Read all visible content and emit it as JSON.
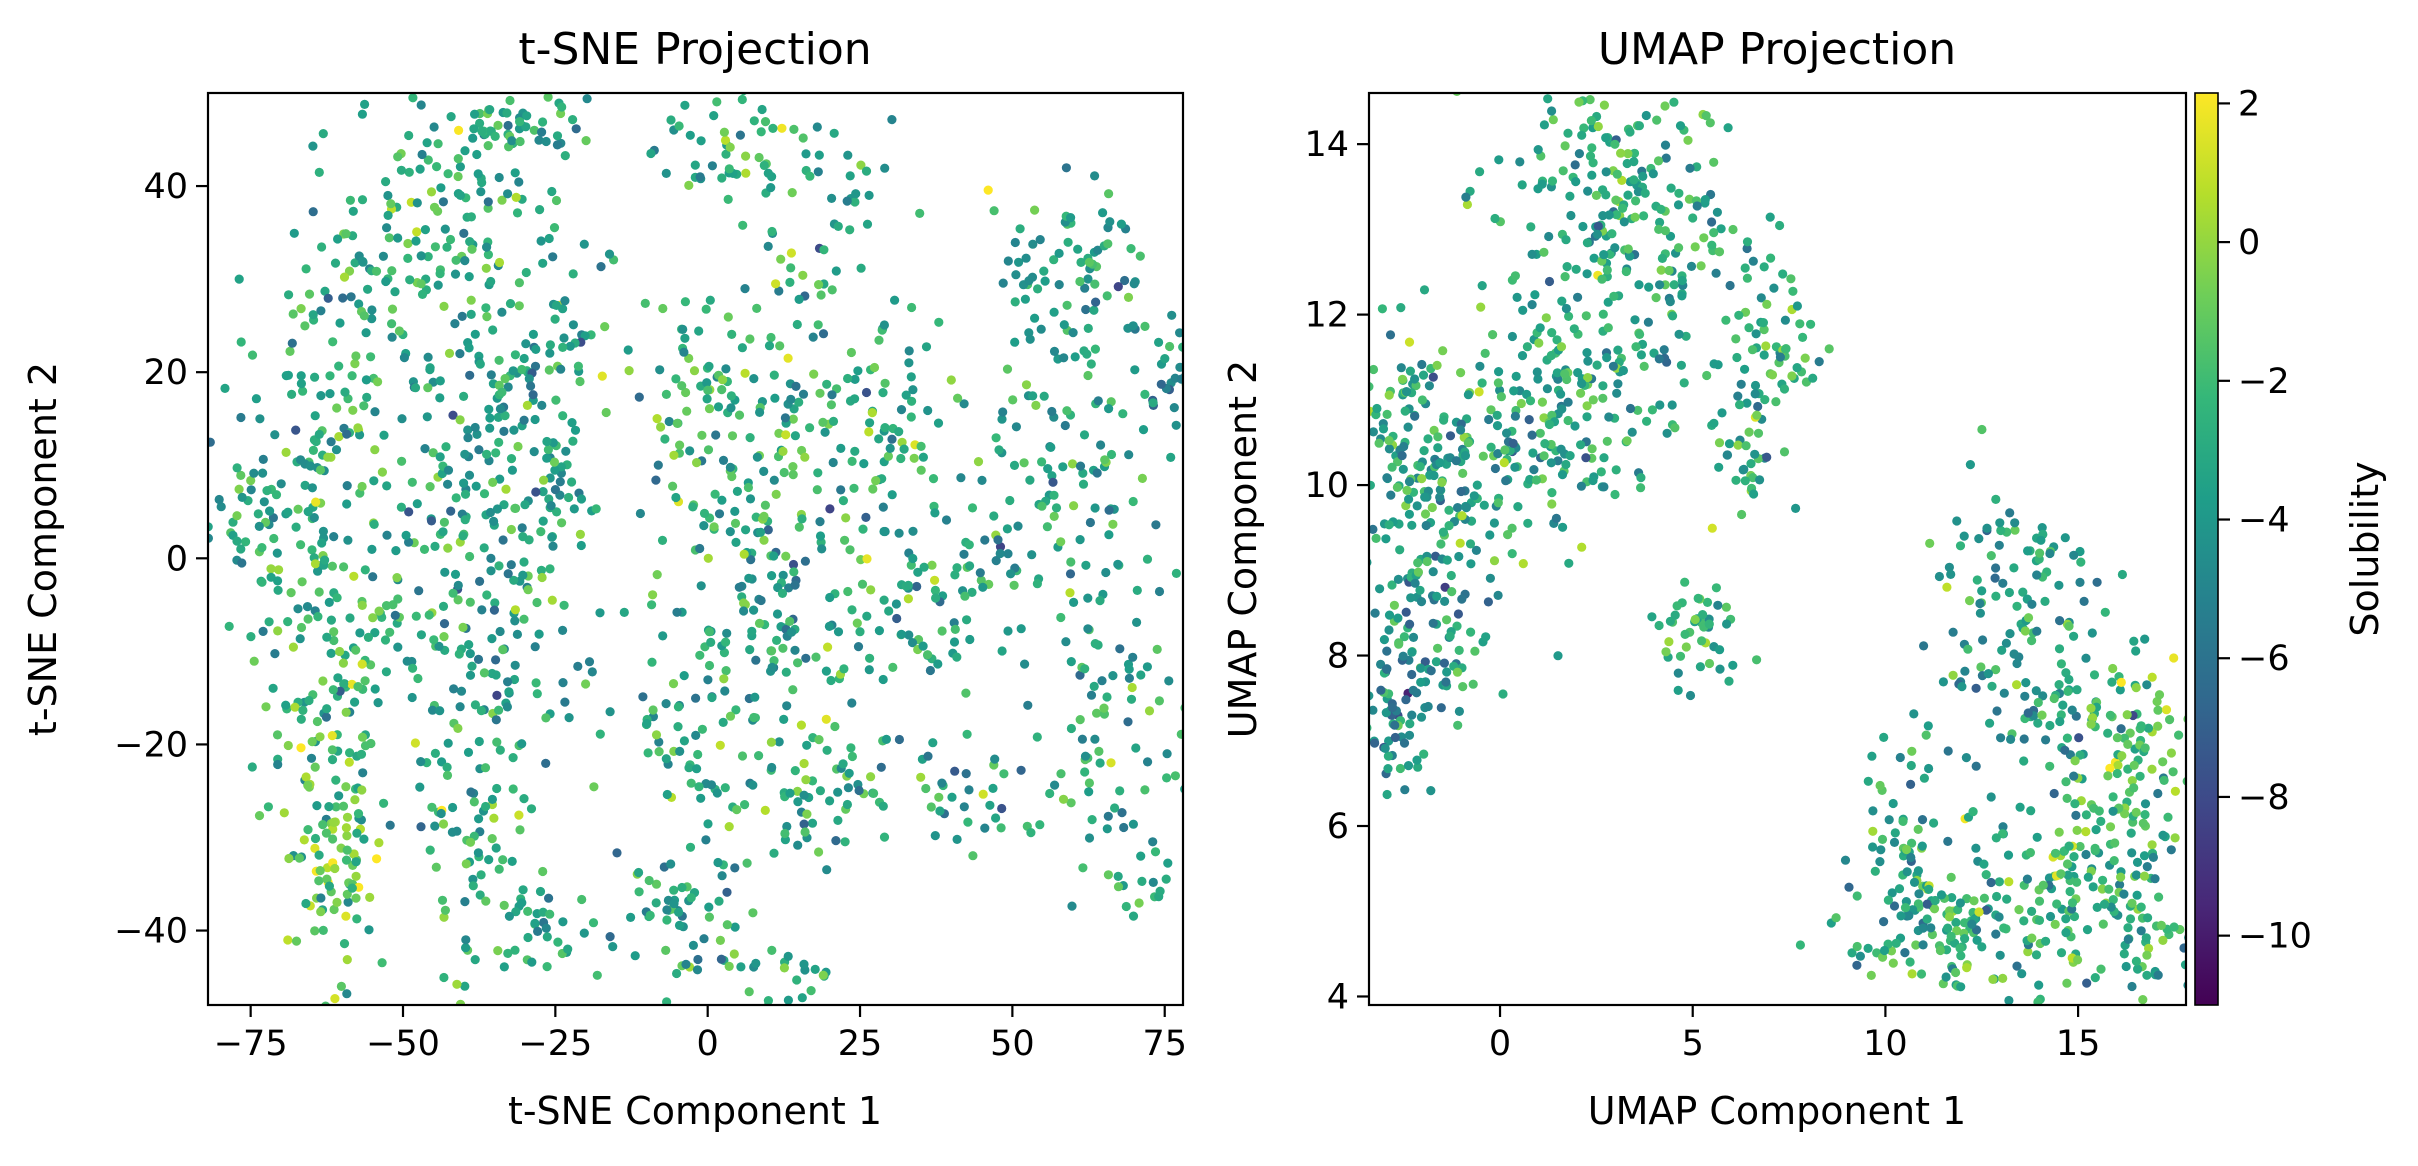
{
  "chart_data": [
    {
      "type": "scatter",
      "title": "t-SNE Projection",
      "xlabel": "t-SNE Component 1",
      "ylabel": "t-SNE Component 2",
      "xlim": [
        -82,
        78
      ],
      "ylim": [
        -48,
        50
      ],
      "xticks": [
        -75,
        -50,
        -25,
        0,
        25,
        50,
        75
      ],
      "xtick_labels": [
        "−75",
        "−50",
        "−25",
        "0",
        "25",
        "50",
        "75"
      ],
      "yticks": [
        40,
        20,
        0,
        -20,
        -40
      ],
      "ytick_labels": [
        "40",
        "20",
        "0",
        "−20",
        "−40"
      ],
      "grid": false,
      "color_by": "Solubility",
      "clusters": [
        {
          "cx": -40,
          "cy": 40,
          "sx": 9,
          "sy": 6,
          "n": 110,
          "mean": -3
        },
        {
          "cx": -30,
          "cy": 47,
          "sx": 5,
          "sy": 2,
          "n": 40,
          "mean": -3
        },
        {
          "cx": -55,
          "cy": 28,
          "sx": 8,
          "sy": 6,
          "n": 90,
          "mean": -3
        },
        {
          "cx": -30,
          "cy": 22,
          "sx": 8,
          "sy": 6,
          "n": 90,
          "mean": -3.5
        },
        {
          "cx": -65,
          "cy": 10,
          "sx": 8,
          "sy": 7,
          "n": 110,
          "mean": -3
        },
        {
          "cx": -40,
          "cy": 8,
          "sx": 8,
          "sy": 7,
          "n": 100,
          "mean": -3.5
        },
        {
          "cx": -75,
          "cy": 4,
          "sx": 4,
          "sy": 4,
          "n": 30,
          "mean": -3
        },
        {
          "cx": -25,
          "cy": 5,
          "sx": 4,
          "sy": 5,
          "n": 40,
          "mean": -3
        },
        {
          "cx": -60,
          "cy": -10,
          "sx": 8,
          "sy": 7,
          "n": 110,
          "mean": -2.5
        },
        {
          "cx": -35,
          "cy": -10,
          "sx": 9,
          "sy": 6,
          "n": 90,
          "mean": -3.5
        },
        {
          "cx": -62,
          "cy": -30,
          "sx": 5,
          "sy": 8,
          "n": 120,
          "mean": -1.5
        },
        {
          "cx": -38,
          "cy": -30,
          "sx": 5,
          "sy": 8,
          "n": 90,
          "mean": -3
        },
        {
          "cx": -25,
          "cy": -40,
          "sx": 4,
          "sy": 2,
          "n": 25,
          "mean": -3
        },
        {
          "cx": 5,
          "cy": 45,
          "sx": 8,
          "sy": 3,
          "n": 50,
          "mean": -2.5
        },
        {
          "cx": 20,
          "cy": 35,
          "sx": 7,
          "sy": 5,
          "n": 40,
          "mean": -3
        },
        {
          "cx": 0,
          "cy": 15,
          "sx": 8,
          "sy": 8,
          "n": 120,
          "mean": -2.5
        },
        {
          "cx": 25,
          "cy": 15,
          "sx": 9,
          "sy": 8,
          "n": 110,
          "mean": -3
        },
        {
          "cx": 10,
          "cy": -5,
          "sx": 9,
          "sy": 7,
          "n": 120,
          "mean": -3.5
        },
        {
          "cx": 35,
          "cy": -5,
          "sx": 9,
          "sy": 6,
          "n": 90,
          "mean": -3
        },
        {
          "cx": 60,
          "cy": 30,
          "sx": 8,
          "sy": 5,
          "n": 90,
          "mean": -3.5
        },
        {
          "cx": 60,
          "cy": 5,
          "sx": 9,
          "sy": 9,
          "n": 120,
          "mean": -3.5
        },
        {
          "cx": 65,
          "cy": -20,
          "sx": 6,
          "sy": 8,
          "n": 70,
          "mean": -3
        },
        {
          "cx": 20,
          "cy": -25,
          "sx": 6,
          "sy": 4,
          "n": 60,
          "mean": -2.5
        },
        {
          "cx": 40,
          "cy": -25,
          "sx": 5,
          "sy": 3,
          "n": 30,
          "mean": -3
        },
        {
          "cx": 0,
          "cy": -20,
          "sx": 6,
          "sy": 6,
          "n": 60,
          "mean": -2.5
        },
        {
          "cx": -5,
          "cy": -38,
          "sx": 6,
          "sy": 4,
          "n": 60,
          "mean": -3
        },
        {
          "cx": 10,
          "cy": -45,
          "sx": 5,
          "sy": 2,
          "n": 25,
          "mean": -3
        },
        {
          "cx": 72,
          "cy": -35,
          "sx": 3,
          "sy": 2,
          "n": 15,
          "mean": -3.5
        },
        {
          "cx": 75,
          "cy": 20,
          "sx": 3,
          "sy": 4,
          "n": 20,
          "mean": -3.5
        }
      ]
    },
    {
      "type": "scatter",
      "title": "UMAP Projection",
      "xlabel": "UMAP Component 1",
      "ylabel": "UMAP Component 2",
      "xlim": [
        -3.4,
        17.8
      ],
      "ylim": [
        3.9,
        14.6
      ],
      "xticks": [
        0,
        5,
        10,
        15
      ],
      "xtick_labels": [
        "0",
        "5",
        "10",
        "15"
      ],
      "yticks": [
        14,
        12,
        10,
        8,
        6,
        4
      ],
      "ytick_labels": [
        "14",
        "12",
        "10",
        "8",
        "6",
        "4"
      ],
      "grid": false,
      "color_by": "Solubility",
      "clusters": [
        {
          "cx": 2.5,
          "cy": 13.5,
          "sx": 1.4,
          "sy": 0.7,
          "n": 120,
          "mean": -3
        },
        {
          "cx": 4.0,
          "cy": 12.8,
          "sx": 1.2,
          "sy": 0.8,
          "n": 110,
          "mean": -3
        },
        {
          "cx": 2.0,
          "cy": 11.3,
          "sx": 1.6,
          "sy": 0.6,
          "n": 140,
          "mean": -3
        },
        {
          "cx": 0.0,
          "cy": 10.3,
          "sx": 1.3,
          "sy": 0.5,
          "n": 110,
          "mean": -3.5
        },
        {
          "cx": -1.8,
          "cy": 9.0,
          "sx": 1.0,
          "sy": 1.0,
          "n": 150,
          "mean": -3.5
        },
        {
          "cx": -2.6,
          "cy": 7.5,
          "sx": 0.6,
          "sy": 0.6,
          "n": 80,
          "mean": -4.5
        },
        {
          "cx": -2.5,
          "cy": 10.8,
          "sx": 0.6,
          "sy": 0.6,
          "n": 60,
          "mean": -3
        },
        {
          "cx": 7.3,
          "cy": 11.6,
          "sx": 0.6,
          "sy": 0.6,
          "n": 60,
          "mean": -2.5
        },
        {
          "cx": 6.2,
          "cy": 10.3,
          "sx": 0.5,
          "sy": 0.4,
          "n": 35,
          "mean": -2.5
        },
        {
          "cx": 5.3,
          "cy": 8.3,
          "sx": 0.5,
          "sy": 0.3,
          "n": 45,
          "mean": -2.5
        },
        {
          "cx": 13.0,
          "cy": 9.0,
          "sx": 1.2,
          "sy": 0.5,
          "n": 70,
          "mean": -3.5
        },
        {
          "cx": 14.0,
          "cy": 7.5,
          "sx": 1.3,
          "sy": 0.6,
          "n": 100,
          "mean": -3.5
        },
        {
          "cx": 16.5,
          "cy": 6.8,
          "sx": 0.8,
          "sy": 0.6,
          "n": 80,
          "mean": -1.5
        },
        {
          "cx": 15.5,
          "cy": 5.5,
          "sx": 1.2,
          "sy": 0.6,
          "n": 110,
          "mean": -2.5
        },
        {
          "cx": 12.0,
          "cy": 4.8,
          "sx": 1.5,
          "sy": 0.5,
          "n": 170,
          "mean": -3
        },
        {
          "cx": 10.5,
          "cy": 6.0,
          "sx": 0.6,
          "sy": 0.6,
          "n": 50,
          "mean": -3
        },
        {
          "cx": 17.0,
          "cy": 4.6,
          "sx": 0.6,
          "sy": 0.4,
          "n": 40,
          "mean": -3
        }
      ]
    }
  ],
  "colorbar": {
    "label": "Solubility",
    "range": [
      -11,
      2.15
    ],
    "ticks": [
      2,
      0,
      -2,
      -4,
      -6,
      -8,
      -10
    ],
    "tick_labels": [
      "2",
      "0",
      "−2",
      "−4",
      "−6",
      "−8",
      "−10"
    ],
    "colormap": "viridis",
    "colors": [
      "#440154",
      "#482878",
      "#3e4989",
      "#31688e",
      "#26828e",
      "#1f9e89",
      "#35b779",
      "#6ece58",
      "#b5de2b",
      "#fde725"
    ]
  }
}
